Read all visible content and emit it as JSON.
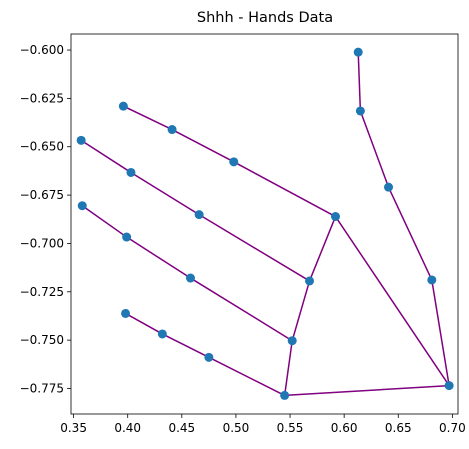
{
  "chart_data": {
    "type": "scatter",
    "title": "Shhh - Hands Data",
    "xlabel": "",
    "ylabel": "",
    "xlim": [
      0.3476,
      0.7052
    ],
    "ylim": [
      -0.7882,
      -0.5917
    ],
    "xticks": [
      0.35,
      0.4,
      0.45,
      0.5,
      0.55,
      0.6,
      0.65,
      0.7
    ],
    "xtick_labels": [
      "0.35",
      "0.40",
      "0.45",
      "0.50",
      "0.55",
      "0.60",
      "0.65",
      "0.70"
    ],
    "yticks": [
      -0.6,
      -0.625,
      -0.65,
      -0.675,
      -0.7,
      -0.725,
      -0.75,
      -0.775
    ],
    "ytick_labels": [
      "−0.600",
      "−0.625",
      "−0.650",
      "−0.675",
      "−0.700",
      "−0.725",
      "−0.750",
      "−0.775"
    ],
    "grid": false,
    "point_color": "#1f77b4",
    "line_color": "#800080",
    "points": [
      {
        "x": 0.697,
        "y": -0.7735
      },
      {
        "x": 0.681,
        "y": -0.7189
      },
      {
        "x": 0.641,
        "y": -0.6709
      },
      {
        "x": 0.615,
        "y": -0.6315
      },
      {
        "x": 0.613,
        "y": -0.6011
      },
      {
        "x": 0.592,
        "y": -0.6861
      },
      {
        "x": 0.498,
        "y": -0.6578
      },
      {
        "x": 0.441,
        "y": -0.6411
      },
      {
        "x": 0.396,
        "y": -0.629
      },
      {
        "x": 0.568,
        "y": -0.7194
      },
      {
        "x": 0.466,
        "y": -0.6851
      },
      {
        "x": 0.403,
        "y": -0.6633
      },
      {
        "x": 0.357,
        "y": -0.6467
      },
      {
        "x": 0.552,
        "y": -0.7503
      },
      {
        "x": 0.458,
        "y": -0.7179
      },
      {
        "x": 0.399,
        "y": -0.6967
      },
      {
        "x": 0.358,
        "y": -0.6805
      },
      {
        "x": 0.545,
        "y": -0.7786
      },
      {
        "x": 0.475,
        "y": -0.7589
      },
      {
        "x": 0.432,
        "y": -0.7468
      },
      {
        "x": 0.398,
        "y": -0.7362
      }
    ],
    "connections": [
      [
        0,
        1
      ],
      [
        1,
        2
      ],
      [
        2,
        3
      ],
      [
        3,
        4
      ],
      [
        0,
        5
      ],
      [
        5,
        6
      ],
      [
        6,
        7
      ],
      [
        7,
        8
      ],
      [
        5,
        9
      ],
      [
        9,
        10
      ],
      [
        10,
        11
      ],
      [
        11,
        12
      ],
      [
        9,
        13
      ],
      [
        13,
        14
      ],
      [
        14,
        15
      ],
      [
        15,
        16
      ],
      [
        13,
        17
      ],
      [
        17,
        18
      ],
      [
        18,
        19
      ],
      [
        19,
        20
      ],
      [
        17,
        0
      ]
    ]
  }
}
